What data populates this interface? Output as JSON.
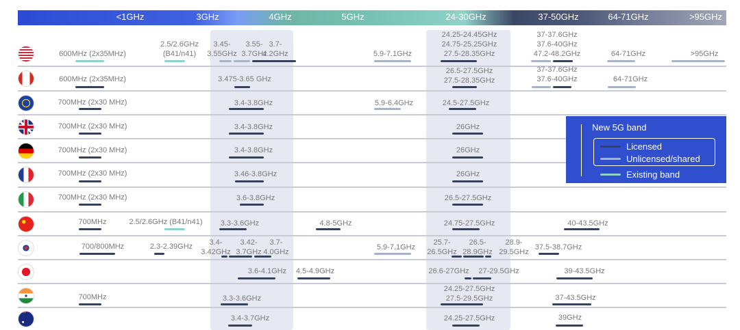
{
  "header_bands": [
    "<1GHz",
    "3GHz",
    "4GHz",
    "5GHz",
    "24-30GHz",
    "37-50GHz",
    "64-71GHz",
    ">95GHz"
  ],
  "colors": {
    "licensed": "#37415a",
    "unlicensed": "#a9b3c6",
    "existing": "#8dd3ca",
    "legend_bg": "#2f4fcf"
  },
  "legend": {
    "title": "New 5G band",
    "items": [
      {
        "label": "Licensed",
        "type": "licensed"
      },
      {
        "label": "Unlicensed/shared",
        "type": "unlicensed"
      },
      {
        "label": "Existing band",
        "type": "existing"
      }
    ]
  },
  "rows": [
    {
      "flag": "us-flag",
      "bands": [
        {
          "label": "600MHz (2x35MHz)",
          "bars": [
            "existing"
          ]
        },
        {
          "label": "2.5/2.6GHz\n(B41/n41)",
          "bars": [
            "existing"
          ]
        },
        {
          "label": "3.45-\n3.55GHz",
          "bars": [
            "unlicensed"
          ]
        },
        {
          "label": "3.55-\n3.7GHz",
          "bars": [
            "unlicensed"
          ]
        },
        {
          "label": "3.7-\n4.2GHz",
          "bars": [
            "licensed"
          ]
        },
        {
          "label": "5.9-7.1GHz",
          "bars": [
            "unlicensed"
          ]
        },
        {
          "label": "24.25-24.45GHz\n24.75-25.25GHz\n27.5-28.35GHz",
          "bars": [
            "licensed"
          ]
        },
        {
          "label": "37-37.6GHz\n37.6-40GHz\n47.2-48.2GHz",
          "bars": [
            "unlicensed",
            "licensed"
          ]
        },
        {
          "label": "64-71GHz",
          "bars": [
            "unlicensed"
          ]
        },
        {
          "label": ">95GHz",
          "bars": [
            "unlicensed"
          ]
        }
      ]
    },
    {
      "flag": "canada-flag",
      "bands": [
        {
          "label": "600MHz (2x35MHz)",
          "bars": [
            "licensed"
          ]
        },
        {
          "label": "3.475-3.65 GHz",
          "bars": [
            "licensed"
          ]
        },
        {
          "label": "26.5-27.5GHz\n27.5-28.35GHz",
          "bars": [
            "licensed"
          ]
        },
        {
          "label": "37-37.6GHz\n37.6-40GHz",
          "bars": [
            "unlicensed",
            "licensed"
          ]
        },
        {
          "label": "64-71GHz",
          "bars": [
            "unlicensed"
          ]
        }
      ]
    },
    {
      "flag": "eu-flag",
      "bands": [
        {
          "label": "700MHz (2x30 MHz)",
          "bars": [
            "licensed"
          ]
        },
        {
          "label": "3.4-3.8GHz",
          "bars": [
            "licensed"
          ]
        },
        {
          "label": "5.9-6.4GHz",
          "bars": [
            "unlicensed"
          ]
        },
        {
          "label": "24.5-27.5GHz",
          "bars": [
            "licensed"
          ]
        }
      ]
    },
    {
      "flag": "uk-flag",
      "bands": [
        {
          "label": "700MHz (2x30 MHz)",
          "bars": [
            "licensed"
          ]
        },
        {
          "label": "3.4-3.8GHz",
          "bars": [
            "licensed"
          ]
        },
        {
          "label": "26GHz",
          "bars": [
            "licensed"
          ]
        }
      ]
    },
    {
      "flag": "germany-flag",
      "bands": [
        {
          "label": "700MHz (2x30 MHz)",
          "bars": [
            "licensed"
          ]
        },
        {
          "label": "3.4-3.8GHz",
          "bars": [
            "licensed"
          ]
        },
        {
          "label": "26GHz",
          "bars": [
            "licensed"
          ]
        }
      ]
    },
    {
      "flag": "france-flag",
      "bands": [
        {
          "label": "700MHz (2x30 MHz)",
          "bars": [
            "licensed"
          ]
        },
        {
          "label": "3.46-3.8GHz",
          "bars": [
            "licensed"
          ]
        },
        {
          "label": "26GHz",
          "bars": [
            "licensed"
          ]
        }
      ]
    },
    {
      "flag": "italy-flag",
      "bands": [
        {
          "label": "700MHz (2x30 MHz)",
          "bars": [
            "licensed"
          ]
        },
        {
          "label": "3.6-3.8GHz",
          "bars": [
            "licensed"
          ]
        },
        {
          "label": "26.5-27.5GHz",
          "bars": [
            "licensed"
          ]
        }
      ]
    },
    {
      "flag": "china-flag",
      "bands": [
        {
          "label": "700MHz",
          "bars": [
            "licensed"
          ]
        },
        {
          "label": "2.5/2.6GHz (B41/n41)",
          "bars": [
            "existing"
          ]
        },
        {
          "label": "3.3-3.6GHz",
          "bars": [
            "licensed"
          ]
        },
        {
          "label": "4.8-5GHz",
          "bars": [
            "licensed"
          ]
        },
        {
          "label": "24.75-27.5GHz",
          "bars": [
            "licensed"
          ]
        },
        {
          "label": "40-43.5GHz",
          "bars": [
            "licensed"
          ]
        }
      ]
    },
    {
      "flag": "korea-flag",
      "bands": [
        {
          "label": "700/800MHz",
          "bars": [
            "licensed"
          ]
        },
        {
          "label": "2.3-2.39GHz",
          "bars": [
            "licensed"
          ]
        },
        {
          "label": "3.4-\n3.42GHz",
          "bars": [
            "licensed"
          ]
        },
        {
          "label": "3.42-\n3.7GHz",
          "bars": [
            "licensed"
          ]
        },
        {
          "label": "3.7-\n4.0GHz",
          "bars": [
            "licensed"
          ]
        },
        {
          "label": "5.9-7.1GHz",
          "bars": [
            "unlicensed"
          ]
        },
        {
          "label": "25.7-\n26.5GHz",
          "bars": [
            "licensed"
          ]
        },
        {
          "label": "26.5-\n28.9GHz",
          "bars": [
            "licensed"
          ]
        },
        {
          "label": "28.9-\n29.5GHz",
          "bars": [
            "licensed"
          ]
        },
        {
          "label": "37.5-38.7GHz",
          "bars": [
            "licensed"
          ]
        }
      ]
    },
    {
      "flag": "japan-flag",
      "bands": [
        {
          "label": "3.6-4.1GHz",
          "bars": [
            "licensed"
          ]
        },
        {
          "label": "4.5-4.9GHz",
          "bars": [
            "licensed"
          ]
        },
        {
          "label": "26.6-27GHz",
          "bars": [
            "licensed"
          ]
        },
        {
          "label": "27-29.5GHz",
          "bars": [
            "licensed"
          ]
        },
        {
          "label": "39-43.5GHz",
          "bars": [
            "licensed"
          ]
        }
      ]
    },
    {
      "flag": "india-flag",
      "bands": [
        {
          "label": "700MHz",
          "bars": [
            "licensed"
          ]
        },
        {
          "label": "3.3-3.6GHz",
          "bars": [
            "licensed"
          ]
        },
        {
          "label": "24.25-27.5GHz\n27.5-29.5GHz",
          "bars": [
            "licensed"
          ]
        },
        {
          "label": "37-43.5GHz",
          "bars": [
            "licensed"
          ]
        }
      ]
    },
    {
      "flag": "australia-flag",
      "bands": [
        {
          "label": "3.4-3.7GHz",
          "bars": [
            "licensed"
          ]
        },
        {
          "label": "24.25-27.5GHz",
          "bars": [
            "licensed"
          ]
        },
        {
          "label": "39GHz",
          "bars": [
            "licensed"
          ]
        }
      ]
    }
  ]
}
